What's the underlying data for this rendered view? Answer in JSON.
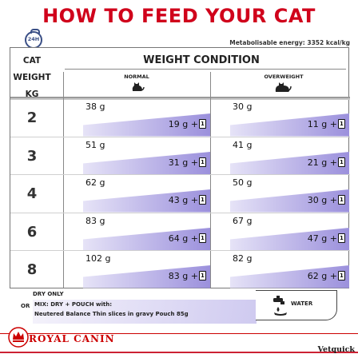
{
  "title": "HOW TO FEED YOUR CAT",
  "clock_label": "24H",
  "energy_text": "Metabolisable energy: 3352 kcal/kg",
  "header": {
    "cat_weight_lines": [
      "CAT",
      "WEIGHT",
      "KG"
    ],
    "weight_condition": "WEIGHT CONDITION",
    "normal": "NORMAL",
    "overweight": "OVERWEIGHT"
  },
  "rows": [
    {
      "weight": "2",
      "normal_dry": "38 g",
      "normal_mix": "19 g",
      "over_dry": "30 g",
      "over_mix": "11 g"
    },
    {
      "weight": "3",
      "normal_dry": "51 g",
      "normal_mix": "31 g",
      "over_dry": "41 g",
      "over_mix": "21 g"
    },
    {
      "weight": "4",
      "normal_dry": "62 g",
      "normal_mix": "43 g",
      "over_dry": "50 g",
      "over_mix": "30 g"
    },
    {
      "weight": "6",
      "normal_dry": "83 g",
      "normal_mix": "64 g",
      "over_dry": "67 g",
      "over_mix": "47 g"
    },
    {
      "weight": "8",
      "normal_dry": "102 g",
      "normal_mix": "83 g",
      "over_dry": "82 g",
      "over_mix": "62 g"
    }
  ],
  "plus_text": "+",
  "pouch_count": "1",
  "legend": {
    "dry_only": "DRY ONLY",
    "or": "OR",
    "mix_line1": "MIX: DRY + POUCH with:",
    "mix_line2": "Neutered Balance Thin slices in gravy Pouch 85g",
    "water": "WATER"
  },
  "brand": "ROYAL CANIN",
  "watermark": "Vetquick",
  "colors": {
    "title_red": "#d0021b",
    "purple_light": "#e6e3f7",
    "purple": "#9b90dc",
    "navy": "#3a4f86"
  }
}
